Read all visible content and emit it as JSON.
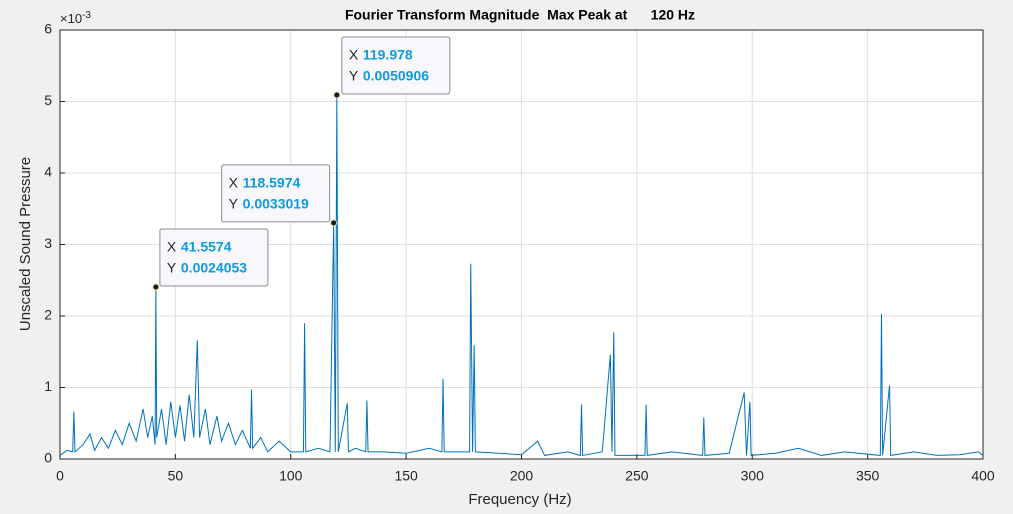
{
  "chart_data": {
    "type": "line",
    "title": "Fourier Transform Magnitude  Max Peak at      120 Hz",
    "x_label": "Frequency (Hz)",
    "y_label": "Unscaled Sound Pressure",
    "y_scale_label": {
      "base": "×10",
      "exponent": "-3"
    },
    "xlim": [
      0,
      400
    ],
    "xticks": [
      0,
      50,
      100,
      150,
      200,
      250,
      300,
      350,
      400
    ],
    "ylim": [
      0,
      0.006
    ],
    "yticks": [
      0,
      {
        "value": 0.001,
        "label": "1"
      },
      {
        "value": 0.002,
        "label": "2"
      },
      {
        "value": 0.003,
        "label": "3"
      },
      {
        "value": 0.004,
        "label": "4"
      },
      {
        "value": 0.005,
        "label": "5"
      },
      {
        "value": 0.006,
        "label": "6"
      }
    ],
    "grid": true,
    "series": [
      {
        "color": "#0072bd",
        "x": [
          0,
          3,
          5.5,
          6,
          6.5,
          10,
          13,
          15,
          18,
          21,
          24,
          27,
          30,
          33,
          36,
          38,
          40,
          41.2,
          41.5574,
          41.9,
          44,
          46,
          48,
          50,
          52,
          54,
          56,
          58,
          59.5,
          60.5,
          63,
          65,
          68,
          70,
          73,
          76,
          79,
          82.5,
          83,
          83.5,
          87,
          90,
          95,
          100,
          105.5,
          106,
          106.5,
          112,
          117,
          118.5974,
          119.3,
          119.978,
          120.6,
          124.5,
          125,
          128,
          132.5,
          133,
          133.5,
          140,
          150,
          160,
          165.5,
          166,
          166.5,
          172,
          177.5,
          178,
          178.8,
          179.5,
          180,
          190,
          200,
          207,
          210,
          220,
          225.5,
          226,
          226.5,
          235,
          238.5,
          239.2,
          240,
          240.5,
          253.5,
          254,
          254.5,
          265,
          278.5,
          279,
          279.5,
          290,
          296.5,
          297.5,
          299,
          299.5,
          310,
          320,
          330,
          340,
          355.5,
          356,
          356.5,
          359.5,
          360,
          370,
          380,
          390,
          398,
          400
        ],
        "values": [
          5e-05,
          0.00012,
          0.0001,
          0.00066,
          0.0001,
          0.0002,
          0.00035,
          0.00012,
          0.0003,
          0.00015,
          0.0004,
          0.0002,
          0.0005,
          0.00025,
          0.0007,
          0.0003,
          0.0006,
          0.0002,
          0.0024053,
          0.0003,
          0.0007,
          0.0002,
          0.0008,
          0.0003,
          0.00075,
          0.00025,
          0.0009,
          0.0003,
          0.00166,
          0.0003,
          0.0007,
          0.0002,
          0.0006,
          0.00025,
          0.0005,
          0.0002,
          0.0004,
          0.00015,
          0.00097,
          0.00015,
          0.0003,
          0.0001,
          0.00025,
          0.0001,
          0.0001,
          0.0019,
          0.0001,
          0.00015,
          0.0001,
          0.0033019,
          0.0001,
          0.0050906,
          0.0001,
          0.00078,
          0.0001,
          0.00015,
          0.0001,
          0.00082,
          0.0001,
          0.0001,
          8e-05,
          0.00015,
          0.0001,
          0.00112,
          0.0001,
          0.0001,
          0.0001,
          0.00273,
          0.0001,
          0.00159,
          0.0001,
          8e-05,
          6e-05,
          0.00025,
          5e-05,
          0.0001,
          5e-05,
          0.00076,
          5e-05,
          0.0001,
          0.00146,
          0.0001,
          0.00177,
          5e-05,
          5e-05,
          0.00076,
          5e-05,
          0.0001,
          5e-05,
          0.00058,
          5e-05,
          8e-05,
          0.00093,
          5e-05,
          0.0008,
          5e-05,
          8e-05,
          0.00015,
          5e-05,
          0.0001,
          5e-05,
          0.00203,
          5e-05,
          0.00103,
          5e-05,
          0.0001,
          5e-05,
          6e-05,
          0.0001,
          5e-05
        ]
      }
    ],
    "annotations": [
      {
        "x_key": "X",
        "y_key": "Y",
        "x": 41.5574,
        "y": 0.0024053
      },
      {
        "x_key": "X",
        "y_key": "Y",
        "x": 118.5974,
        "y": 0.0033019
      },
      {
        "x_key": "X",
        "y_key": "Y",
        "x": 119.978,
        "y": 0.0050906
      }
    ]
  }
}
